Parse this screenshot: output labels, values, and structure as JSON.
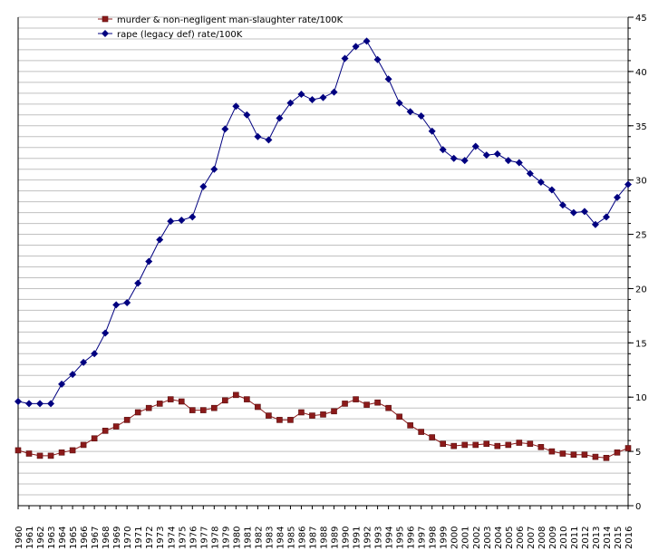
{
  "chart_data": {
    "type": "line",
    "title": "",
    "xlabel": "",
    "ylabel": "",
    "ylim": [
      0,
      45
    ],
    "ytick_labels": [
      "0",
      "5",
      "10",
      "15",
      "20",
      "25",
      "30",
      "35",
      "40",
      "45"
    ],
    "grid": true,
    "legend_position": "top-left",
    "x": [
      "1960",
      "1961",
      "1962",
      "1963",
      "1964",
      "1965",
      "1966",
      "1967",
      "1968",
      "1969",
      "1970",
      "1971",
      "1972",
      "1973",
      "1974",
      "1975",
      "1976",
      "1977",
      "1978",
      "1979",
      "1980",
      "1981",
      "1982",
      "1983",
      "1984",
      "1985",
      "1986",
      "1987",
      "1988",
      "1989",
      "1990",
      "1991",
      "1992",
      "1993",
      "1994",
      "1995",
      "1996",
      "1997",
      "1998",
      "1999",
      "2000",
      "2001",
      "2002",
      "2003",
      "2004",
      "2005",
      "2006",
      "2007",
      "2008",
      "2009",
      "2010",
      "2011",
      "2012",
      "2013",
      "2014",
      "2015",
      "2016"
    ],
    "series": [
      {
        "name": "murder & non-negligent man-slaughter rate/100K",
        "color": "#8b1a1a",
        "marker": "square",
        "values": [
          5.1,
          4.8,
          4.6,
          4.6,
          4.9,
          5.1,
          5.6,
          6.2,
          6.9,
          7.3,
          7.9,
          8.6,
          9.0,
          9.4,
          9.8,
          9.6,
          8.8,
          8.8,
          9.0,
          9.7,
          10.2,
          9.8,
          9.1,
          8.3,
          7.9,
          7.9,
          8.6,
          8.3,
          8.4,
          8.7,
          9.4,
          9.8,
          9.3,
          9.5,
          9.0,
          8.2,
          7.4,
          6.8,
          6.3,
          5.7,
          5.5,
          5.6,
          5.6,
          5.7,
          5.5,
          5.6,
          5.8,
          5.7,
          5.4,
          5.0,
          4.8,
          4.7,
          4.7,
          4.5,
          4.4,
          4.9,
          5.3
        ]
      },
      {
        "name": "rape (legacy def) rate/100K",
        "color": "#000080",
        "marker": "diamond",
        "values": [
          9.6,
          9.4,
          9.4,
          9.4,
          11.2,
          12.1,
          13.2,
          14.0,
          15.9,
          18.5,
          18.7,
          20.5,
          22.5,
          24.5,
          26.2,
          26.3,
          26.6,
          29.4,
          31.0,
          34.7,
          36.8,
          36.0,
          34.0,
          33.7,
          35.7,
          37.1,
          37.9,
          37.4,
          37.6,
          38.1,
          41.2,
          42.3,
          42.8,
          41.1,
          39.3,
          37.1,
          36.3,
          35.9,
          34.5,
          32.8,
          32.0,
          31.8,
          33.1,
          32.3,
          32.4,
          31.8,
          31.6,
          30.6,
          29.8,
          29.1,
          27.7,
          27.0,
          27.1,
          25.9,
          26.6,
          28.4,
          29.6
        ]
      }
    ]
  }
}
